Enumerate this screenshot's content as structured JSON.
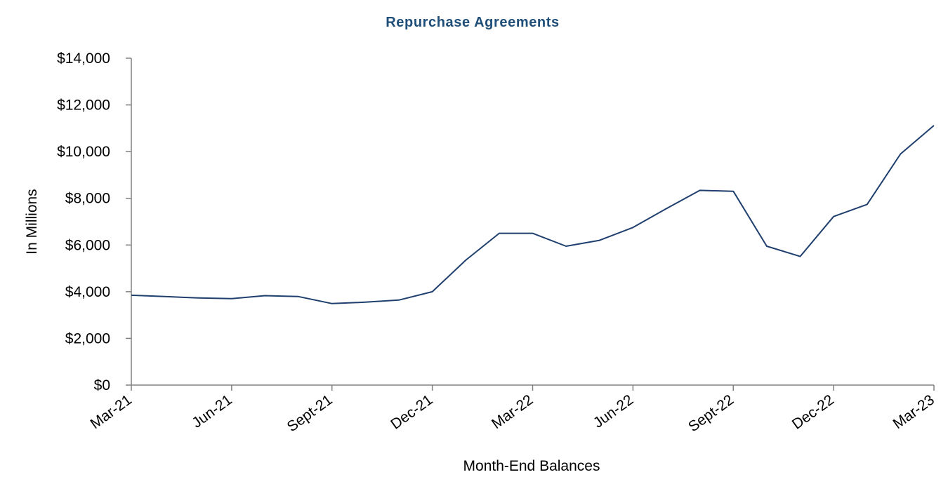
{
  "chart_data": {
    "type": "line",
    "title": "Repurchase Agreements",
    "xlabel": "Month-End Balances",
    "ylabel": "In Millions",
    "ylim": [
      0,
      14000
    ],
    "yticks": [
      0,
      2000,
      4000,
      6000,
      8000,
      10000,
      12000,
      14000
    ],
    "ytick_labels": [
      "$0",
      "$2,000",
      "$4,000",
      "$6,000",
      "$8,000",
      "$10,000",
      "$12,000",
      "$14,000"
    ],
    "xticks": [
      "Mar-21",
      "Jun-21",
      "Sept-21",
      "Dec-21",
      "Mar-22",
      "Jun-22",
      "Sept-22",
      "Dec-22",
      "Mar-23"
    ],
    "grid": false,
    "line_color": "#1f3f6e",
    "series": [
      {
        "x": [
          "Mar-21",
          "Apr-21",
          "May-21",
          "Jun-21",
          "Jul-21",
          "Aug-21",
          "Sept-21",
          "Oct-21",
          "Nov-21",
          "Dec-21",
          "Jan-22",
          "Feb-22",
          "Mar-22",
          "Apr-22",
          "May-22",
          "Jun-22",
          "Jul-22",
          "Aug-22",
          "Sept-22",
          "Oct-22",
          "Nov-22",
          "Dec-22",
          "Jan-23",
          "Feb-23",
          "Mar-23"
        ],
        "values": [
          3850,
          3790,
          3730,
          3700,
          3830,
          3790,
          3490,
          3550,
          3640,
          4000,
          5350,
          6500,
          6500,
          5950,
          6200,
          6750,
          7560,
          8340,
          8300,
          5950,
          5510,
          7220,
          7740,
          9900,
          11120
        ]
      }
    ]
  }
}
